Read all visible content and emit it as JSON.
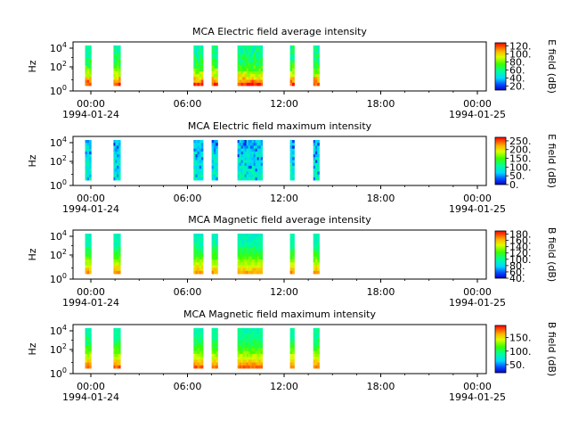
{
  "chart_data": [
    {
      "type": "heatmap",
      "title": "MCA  Electric field average intensity",
      "ylabel": "Hz",
      "y_tick_labels": [
        "10^0",
        "10^2",
        "10^4"
      ],
      "x_tick_labels": [
        "00:00",
        "06:00",
        "12:00",
        "18:00",
        "00:00"
      ],
      "x_date_labels": [
        "1994-01-24",
        "",
        "",
        "",
        "1994-01-25"
      ],
      "xlim": [
        "1994-01-24T00:00",
        "1994-01-25T00:00"
      ],
      "colorbar_label": "E field (dB)",
      "colorbar_range": [
        10,
        128
      ],
      "colorbar_ticks": [
        "20.",
        "40.",
        "60.",
        "80.",
        "100.",
        "120."
      ],
      "palette": "rainbow",
      "data_intervals_utc_hours": [
        [
          0.7,
          1.05
        ],
        [
          2.35,
          2.75
        ],
        [
          7.0,
          7.55
        ],
        [
          8.05,
          8.4
        ],
        [
          9.55,
          11.0
        ],
        [
          12.6,
          12.85
        ],
        [
          13.95,
          14.3
        ]
      ],
      "description_of_values": "low frequencies orange/red, mid frequencies yellow-green, high frequencies cyan-green"
    },
    {
      "type": "heatmap",
      "title": "MCA  Electric field maximum intensity",
      "ylabel": "Hz",
      "y_tick_labels": [
        "10^0",
        "10^2",
        "10^4"
      ],
      "x_tick_labels": [
        "00:00",
        "06:00",
        "12:00",
        "18:00",
        "00:00"
      ],
      "x_date_labels": [
        "1994-01-24",
        "",
        "",
        "",
        "1994-01-25"
      ],
      "xlim": [
        "1994-01-24T00:00",
        "1994-01-25T00:00"
      ],
      "colorbar_label": "E field (dB)",
      "colorbar_range": [
        0,
        270
      ],
      "colorbar_ticks": [
        "0.",
        "50.",
        "100.",
        "150.",
        "200.",
        "250."
      ],
      "palette": "rainbow",
      "data_intervals_utc_hours": [
        [
          0.7,
          1.05
        ],
        [
          2.35,
          2.75
        ],
        [
          7.0,
          7.55
        ],
        [
          8.05,
          8.4
        ],
        [
          9.55,
          11.0
        ],
        [
          12.6,
          12.85
        ],
        [
          13.95,
          14.3
        ]
      ],
      "description_of_values": "mostly cyan/light blue with darker blue streaks"
    },
    {
      "type": "heatmap",
      "title": "MCA  Magnetic field average intensity",
      "ylabel": "Hz",
      "y_tick_labels": [
        "10^0",
        "10^2",
        "10^4"
      ],
      "x_tick_labels": [
        "00:00",
        "06:00",
        "12:00",
        "18:00",
        "00:00"
      ],
      "x_date_labels": [
        "1994-01-24",
        "",
        "",
        "",
        "1994-01-25"
      ],
      "xlim": [
        "1994-01-24T00:00",
        "1994-01-25T00:00"
      ],
      "colorbar_label": "B field (dB)",
      "colorbar_range": [
        40,
        190
      ],
      "colorbar_ticks": [
        "40.",
        "60.",
        "80.",
        "100.",
        "120.",
        "140.",
        "160.",
        "180."
      ],
      "palette": "rainbow",
      "data_intervals_utc_hours": [
        [
          0.7,
          1.05
        ],
        [
          2.35,
          2.75
        ],
        [
          7.0,
          7.55
        ],
        [
          8.05,
          8.4
        ],
        [
          9.55,
          11.0
        ],
        [
          12.6,
          12.85
        ],
        [
          13.95,
          14.3
        ]
      ],
      "description_of_values": "cyan at high frequency, green middle, yellow/orange at low frequency"
    },
    {
      "type": "heatmap",
      "title": "MCA  Magnetic field maximum intensity",
      "ylabel": "Hz",
      "y_tick_labels": [
        "10^0",
        "10^2",
        "10^4"
      ],
      "x_tick_labels": [
        "00:00",
        "06:00",
        "12:00",
        "18:00",
        "00:00"
      ],
      "x_date_labels": [
        "1994-01-24",
        "",
        "",
        "",
        "1994-01-25"
      ],
      "xlim": [
        "1994-01-24T00:00",
        "1994-01-25T00:00"
      ],
      "colorbar_label": "B field (dB)",
      "colorbar_range": [
        20,
        195
      ],
      "colorbar_ticks": [
        "50.",
        "100.",
        "150."
      ],
      "palette": "rainbow",
      "data_intervals_utc_hours": [
        [
          0.7,
          1.05
        ],
        [
          2.35,
          2.75
        ],
        [
          7.0,
          7.55
        ],
        [
          8.05,
          8.4
        ],
        [
          9.55,
          11.0
        ],
        [
          12.6,
          12.85
        ],
        [
          13.95,
          14.3
        ]
      ],
      "description_of_values": "cyan/green at high frequency, yellow at low frequency, orange at lowest"
    }
  ],
  "colors": {
    "panel_border": "#000000",
    "background": "#ffffff"
  }
}
